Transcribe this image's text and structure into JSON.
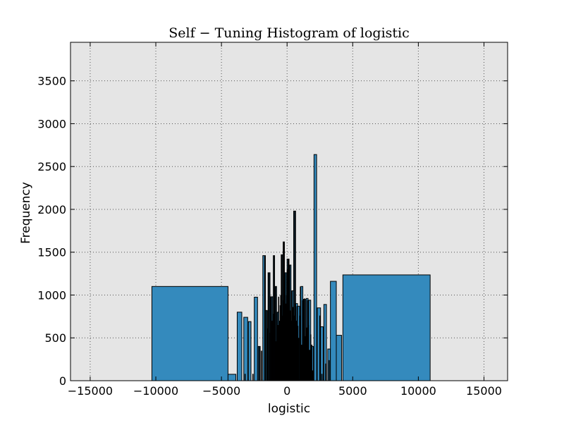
{
  "chart_data": {
    "type": "bar",
    "title": "Self − Tuning Histogram of logistic",
    "xlabel": "logistic",
    "ylabel": "Frequency",
    "xlim": [
      -16500,
      16800
    ],
    "ylim": [
      0,
      3950
    ],
    "xticks": [
      -15000,
      -10000,
      -5000,
      0,
      5000,
      10000,
      15000
    ],
    "xtick_labels": [
      "−15000",
      "−10000",
      "−5000",
      "0",
      "5000",
      "10000",
      "15000"
    ],
    "yticks": [
      0,
      500,
      1000,
      1500,
      2000,
      2500,
      3000,
      3500
    ],
    "ytick_labels": [
      "0",
      "500",
      "1000",
      "1500",
      "2000",
      "2500",
      "3000",
      "3500"
    ],
    "grid": true,
    "background": "#e5e5e5",
    "bar_color": "#348abd",
    "edge_color": "#000000",
    "bins": [
      {
        "x0": -10300,
        "x1": -4500,
        "count": 1100
      },
      {
        "x0": -4500,
        "x1": -3900,
        "count": 75
      },
      {
        "x0": -3800,
        "x1": -3450,
        "count": 800
      },
      {
        "x0": -3300,
        "x1": -3000,
        "count": 740
      },
      {
        "x0": -2950,
        "x1": -2750,
        "count": 690
      },
      {
        "x0": -2500,
        "x1": -2250,
        "count": 975
      },
      {
        "x0": -2200,
        "x1": -2050,
        "count": 400
      },
      {
        "x0": -1850,
        "x1": -1650,
        "count": 1460
      },
      {
        "x0": -1650,
        "x1": -1500,
        "count": 820
      },
      {
        "x0": -1450,
        "x1": -1300,
        "count": 1260
      },
      {
        "x0": -1250,
        "x1": -1100,
        "count": 980
      },
      {
        "x0": -1050,
        "x1": -950,
        "count": 1460
      },
      {
        "x0": -900,
        "x1": -800,
        "count": 1100
      },
      {
        "x0": -750,
        "x1": -650,
        "count": 800
      },
      {
        "x0": -450,
        "x1": -350,
        "count": 1470
      },
      {
        "x0": -300,
        "x1": -200,
        "count": 1620
      },
      {
        "x0": -150,
        "x1": -50,
        "count": 1260
      },
      {
        "x0": 0,
        "x1": 150,
        "count": 1420
      },
      {
        "x0": 150,
        "x1": 300,
        "count": 1350
      },
      {
        "x0": 350,
        "x1": 500,
        "count": 1050
      },
      {
        "x0": 500,
        "x1": 650,
        "count": 1980
      },
      {
        "x0": 650,
        "x1": 800,
        "count": 900
      },
      {
        "x0": 800,
        "x1": 950,
        "count": 870
      },
      {
        "x0": 1050,
        "x1": 1200,
        "count": 1100
      },
      {
        "x0": 1250,
        "x1": 1400,
        "count": 950
      },
      {
        "x0": 1450,
        "x1": 1600,
        "count": 960
      },
      {
        "x0": 1650,
        "x1": 1800,
        "count": 940
      },
      {
        "x0": 1850,
        "x1": 2000,
        "count": 400
      },
      {
        "x0": 2050,
        "x1": 2250,
        "count": 2640
      },
      {
        "x0": 2300,
        "x1": 2550,
        "count": 850
      },
      {
        "x0": 2550,
        "x1": 2750,
        "count": 630
      },
      {
        "x0": 2800,
        "x1": 3000,
        "count": 890
      },
      {
        "x0": 3100,
        "x1": 3300,
        "count": 370
      },
      {
        "x0": 3300,
        "x1": 3750,
        "count": 1160
      },
      {
        "x0": 3750,
        "x1": 4150,
        "count": 530
      },
      {
        "x0": 4250,
        "x1": 10900,
        "count": 1235
      }
    ],
    "spikes": [
      {
        "x": -3200,
        "count": 80
      },
      {
        "x": -2600,
        "count": 80
      },
      {
        "x": -2100,
        "count": 400
      },
      {
        "x": -1950,
        "count": 350
      },
      {
        "x": -1700,
        "count": 1460
      },
      {
        "x": -1560,
        "count": 820
      },
      {
        "x": -1480,
        "count": 610
      },
      {
        "x": -1380,
        "count": 1260
      },
      {
        "x": -1300,
        "count": 560
      },
      {
        "x": -1200,
        "count": 980
      },
      {
        "x": -1150,
        "count": 700
      },
      {
        "x": -1050,
        "count": 780
      },
      {
        "x": -980,
        "count": 1460
      },
      {
        "x": -930,
        "count": 580
      },
      {
        "x": -880,
        "count": 1100
      },
      {
        "x": -820,
        "count": 460
      },
      {
        "x": -760,
        "count": 800
      },
      {
        "x": -700,
        "count": 650
      },
      {
        "x": -640,
        "count": 980
      },
      {
        "x": -580,
        "count": 700
      },
      {
        "x": -520,
        "count": 880
      },
      {
        "x": -480,
        "count": 1000
      },
      {
        "x": -420,
        "count": 1470
      },
      {
        "x": -360,
        "count": 760
      },
      {
        "x": -300,
        "count": 940
      },
      {
        "x": -260,
        "count": 1620
      },
      {
        "x": -200,
        "count": 700
      },
      {
        "x": -150,
        "count": 1250
      },
      {
        "x": -100,
        "count": 900
      },
      {
        "x": -40,
        "count": 1000
      },
      {
        "x": 20,
        "count": 1300
      },
      {
        "x": 80,
        "count": 1420
      },
      {
        "x": 140,
        "count": 1050
      },
      {
        "x": 200,
        "count": 1350
      },
      {
        "x": 260,
        "count": 820
      },
      {
        "x": 320,
        "count": 700
      },
      {
        "x": 380,
        "count": 1050
      },
      {
        "x": 440,
        "count": 860
      },
      {
        "x": 520,
        "count": 760
      },
      {
        "x": 580,
        "count": 1980
      },
      {
        "x": 640,
        "count": 900
      },
      {
        "x": 700,
        "count": 700
      },
      {
        "x": 760,
        "count": 870
      },
      {
        "x": 820,
        "count": 640
      },
      {
        "x": 880,
        "count": 500
      },
      {
        "x": 960,
        "count": 760
      },
      {
        "x": 1020,
        "count": 1100
      },
      {
        "x": 1100,
        "count": 420
      },
      {
        "x": 1180,
        "count": 940
      },
      {
        "x": 1250,
        "count": 650
      },
      {
        "x": 1320,
        "count": 960
      },
      {
        "x": 1400,
        "count": 520
      },
      {
        "x": 1480,
        "count": 620
      },
      {
        "x": 1560,
        "count": 940
      },
      {
        "x": 1640,
        "count": 650
      },
      {
        "x": 1720,
        "count": 360
      },
      {
        "x": 1800,
        "count": 540
      },
      {
        "x": 1880,
        "count": 420
      },
      {
        "x": 1960,
        "count": 120
      },
      {
        "x": 2500,
        "count": 760
      },
      {
        "x": 2650,
        "count": 80
      },
      {
        "x": 2950,
        "count": 200
      },
      {
        "x": 3200,
        "count": 240
      }
    ]
  }
}
